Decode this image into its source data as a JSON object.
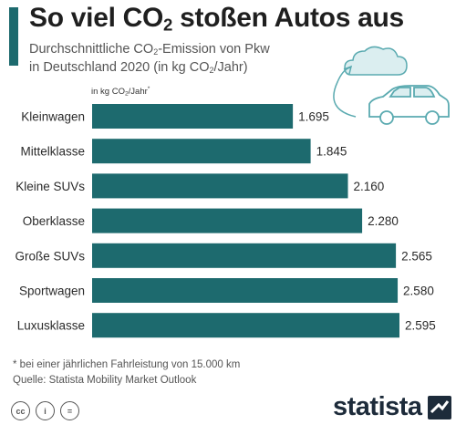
{
  "header": {
    "title_main": "So viel CO",
    "title_sub": "2",
    "title_rest": " stoßen Autos aus",
    "subtitle_line1_a": "Durchschnittliche CO",
    "subtitle_line1_sub": "2",
    "subtitle_line1_b": "-Emission von Pkw",
    "subtitle_line2_a": "in Deutschland 2020 (in kg CO",
    "subtitle_line2_sub": "2",
    "subtitle_line2_b": "/Jahr)"
  },
  "unit_label": {
    "a": "in kg CO",
    "sub": "2",
    "b": "/Jahr",
    "sup": "*"
  },
  "chart_data": {
    "type": "bar",
    "orientation": "horizontal",
    "categories": [
      "Kleinwagen",
      "Mittelklasse",
      "Kleine SUVs",
      "Oberklasse",
      "Große SUVs",
      "Sportwagen",
      "Luxusklasse"
    ],
    "values": [
      1695,
      1845,
      2160,
      2280,
      2565,
      2580,
      2595
    ],
    "value_labels": [
      "1.695",
      "1.845",
      "2.160",
      "2.280",
      "2.565",
      "2.580",
      "2.595"
    ],
    "xlim": [
      0,
      2700
    ],
    "bar_color": "#1d6a6e",
    "grid": false
  },
  "footer": {
    "note": "* bei einer jährlichen Fahrleistung von 15.000 km",
    "source": "Quelle: Statista Mobility Market Outlook",
    "brand": "statista",
    "cc_icons": [
      "cc",
      "i",
      "="
    ]
  },
  "colors": {
    "accent": "#1d6a6e",
    "illustration": "#5aaab0",
    "cloud": "#dbeef0"
  }
}
